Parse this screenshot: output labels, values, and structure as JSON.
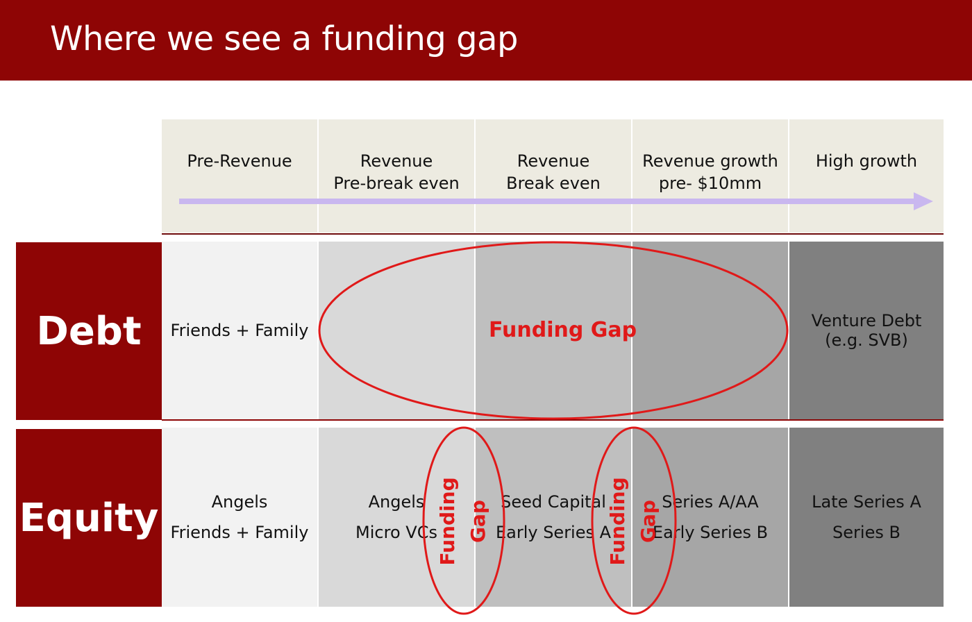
{
  "title": "Where we see a funding gap",
  "stages": [
    "Pre-Revenue",
    "Revenue\nPre-break even",
    "Revenue\nBreak even",
    "Revenue growth\npre- $10mm",
    "High growth"
  ],
  "rows": [
    {
      "label": "Debt",
      "cells": [
        "Friends + Family",
        "",
        "",
        "",
        "Venture Debt\n(e.g. SVB)"
      ]
    },
    {
      "label": "Equity",
      "cells": [
        "Angels\nFriends + Family",
        "Angels\nMicro VCs",
        "Seed Capital\nEarly Series A",
        "Series A/AA\nEarly Series B",
        "Late Series A\nSeries B"
      ]
    }
  ],
  "debt_gap_label": "Funding Gap",
  "equity_gaps": [
    "Funding\nGap",
    "Funding\nGap"
  ],
  "colors": {
    "banner": "#8e0505",
    "gap_red": "#e01919",
    "arrow": "#c9b7ef",
    "shades": [
      "#f2f2f2",
      "#d9d9d9",
      "#bfbfbf",
      "#a6a6a6",
      "#808080"
    ]
  }
}
